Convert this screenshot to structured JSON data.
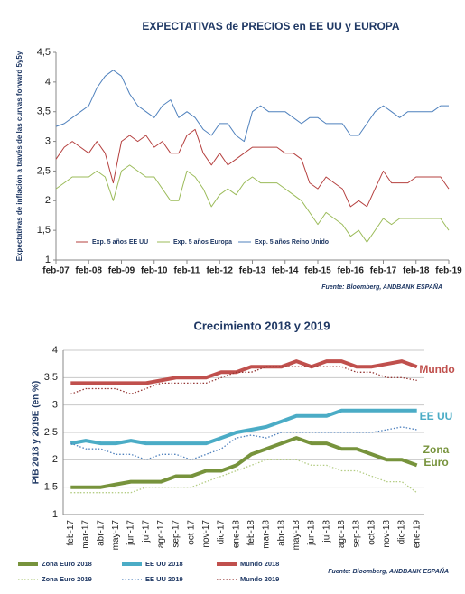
{
  "chart_data": [
    {
      "type": "line",
      "title": "EXPECTATIVAS de PRECIOS en EE UU y EUROPA",
      "ylabel": "Expectativas de inflación a través de las curvas forward 5y5y",
      "categories": [
        "feb-07",
        null,
        null,
        null,
        "feb-08",
        null,
        null,
        null,
        "feb-09",
        null,
        null,
        null,
        "feb-10",
        null,
        null,
        null,
        "feb-11",
        null,
        null,
        null,
        "feb-12",
        null,
        null,
        null,
        "feb-13",
        null,
        null,
        null,
        "feb-14",
        null,
        null,
        null,
        "feb-15",
        null,
        null,
        null,
        "feb-16",
        null,
        null,
        null,
        "feb-17",
        null,
        null,
        null,
        "feb-18",
        null,
        null,
        null,
        "feb-19"
      ],
      "ylim": [
        1,
        4.5
      ],
      "yticks": [
        1,
        {
          "value": 1.5,
          "label": "1,5"
        },
        2,
        {
          "value": 2.5,
          "label": "2,5"
        },
        3,
        {
          "value": 3.5,
          "label": "3,5"
        },
        4,
        {
          "value": 4.5,
          "label": "4,5"
        }
      ],
      "grid": false,
      "legend": "inside-bottom",
      "series": [
        {
          "name": "Exp. 5 años EE UU",
          "color": "#b5403f",
          "style": "thin",
          "values": [
            2.7,
            2.9,
            3.0,
            2.9,
            2.8,
            3.0,
            2.8,
            2.3,
            3.0,
            3.1,
            3.0,
            3.1,
            2.9,
            3.0,
            2.8,
            2.8,
            3.1,
            3.2,
            2.8,
            2.6,
            2.8,
            2.6,
            2.7,
            2.8,
            2.9,
            2.9,
            2.9,
            2.9,
            2.8,
            2.8,
            2.7,
            2.3,
            2.2,
            2.4,
            2.3,
            2.2,
            1.9,
            2.0,
            1.9,
            2.2,
            2.5,
            2.3,
            2.3,
            2.3,
            2.4,
            2.4,
            2.4,
            2.4,
            2.2
          ]
        },
        {
          "name": "Exp. 5 años Europa",
          "color": "#9bbb59",
          "style": "thin",
          "values": [
            2.2,
            2.3,
            2.4,
            2.4,
            2.4,
            2.5,
            2.4,
            2.0,
            2.5,
            2.6,
            2.5,
            2.4,
            2.4,
            2.2,
            2.0,
            2.0,
            2.5,
            2.4,
            2.2,
            1.9,
            2.1,
            2.2,
            2.1,
            2.3,
            2.4,
            2.3,
            2.3,
            2.3,
            2.2,
            2.1,
            2.0,
            1.8,
            1.6,
            1.8,
            1.7,
            1.6,
            1.4,
            1.5,
            1.3,
            1.5,
            1.7,
            1.6,
            1.7,
            1.7,
            1.7,
            1.7,
            1.7,
            1.7,
            1.5
          ]
        },
        {
          "name": "Exp. 5 años Reino Unido",
          "color": "#4f81bd",
          "style": "thin",
          "values": [
            3.25,
            3.3,
            3.4,
            3.5,
            3.6,
            3.9,
            4.1,
            4.2,
            4.1,
            3.8,
            3.6,
            3.5,
            3.4,
            3.6,
            3.7,
            3.4,
            3.5,
            3.4,
            3.2,
            3.1,
            3.3,
            3.3,
            3.1,
            3.0,
            3.5,
            3.6,
            3.5,
            3.5,
            3.5,
            3.4,
            3.3,
            3.4,
            3.4,
            3.3,
            3.3,
            3.3,
            3.1,
            3.1,
            3.3,
            3.5,
            3.6,
            3.5,
            3.4,
            3.5,
            3.5,
            3.5,
            3.5,
            3.6,
            3.6
          ]
        }
      ],
      "source": "Fuente: Bloomberg, ANDBANK ESPAÑA"
    },
    {
      "type": "line",
      "title": "Crecimiento 2018 y 2019",
      "ylabel": "PIB 2018 y 2019E (en %)",
      "categories": [
        "feb-17",
        "mar-17",
        "abr-17",
        "may-17",
        "jun-17",
        "jul-17",
        "ago-17",
        "sep-17",
        "oct-17",
        "nov-17",
        "dic-17",
        "ene-18",
        "feb-18",
        "mar-18",
        "abr-18",
        "may-18",
        "jun-18",
        "jul-18",
        "ago-18",
        "sep-18",
        "oct-18",
        "nov-18",
        "dic-18",
        "ene-19"
      ],
      "ylim": [
        1,
        4
      ],
      "yticks": [
        1,
        {
          "value": 1.5,
          "label": "1,5"
        },
        2,
        {
          "value": 2.5,
          "label": "2,5"
        },
        3,
        {
          "value": 3.5,
          "label": "3,5"
        },
        4
      ],
      "grid": true,
      "legend": "below",
      "series": [
        {
          "name": "Zona Euro 2018",
          "color": "#77933c",
          "style": "thick",
          "values": [
            1.5,
            1.5,
            1.5,
            1.55,
            1.6,
            1.6,
            1.6,
            1.7,
            1.7,
            1.8,
            1.8,
            1.9,
            2.1,
            2.2,
            2.3,
            2.4,
            2.3,
            2.3,
            2.2,
            2.2,
            2.1,
            2.0,
            2.0,
            1.9
          ]
        },
        {
          "name": "EE UU 2018",
          "color": "#4bacc6",
          "style": "thick",
          "values": [
            2.3,
            2.35,
            2.3,
            2.3,
            2.35,
            2.3,
            2.3,
            2.3,
            2.3,
            2.3,
            2.4,
            2.5,
            2.55,
            2.6,
            2.7,
            2.8,
            2.8,
            2.8,
            2.9,
            2.9,
            2.9,
            2.9,
            2.9,
            2.9
          ]
        },
        {
          "name": "Mundo 2018",
          "color": "#c0504d",
          "style": "thick",
          "values": [
            3.4,
            3.4,
            3.4,
            3.4,
            3.4,
            3.4,
            3.45,
            3.5,
            3.5,
            3.5,
            3.6,
            3.6,
            3.7,
            3.7,
            3.7,
            3.8,
            3.7,
            3.8,
            3.8,
            3.7,
            3.7,
            3.75,
            3.8,
            3.7
          ]
        },
        {
          "name": "Zona Euro 2019",
          "color": "#b3cc82",
          "style": "dotted",
          "values": [
            1.4,
            1.4,
            1.4,
            1.4,
            1.4,
            1.5,
            1.5,
            1.5,
            1.5,
            1.6,
            1.7,
            1.8,
            1.9,
            2.0,
            2.0,
            2.0,
            1.9,
            1.9,
            1.8,
            1.8,
            1.7,
            1.6,
            1.6,
            1.4
          ]
        },
        {
          "name": "EE UU 2019",
          "color": "#4f81bd",
          "style": "dotted",
          "values": [
            2.3,
            2.2,
            2.2,
            2.1,
            2.1,
            2.0,
            2.1,
            2.1,
            2.0,
            2.1,
            2.2,
            2.4,
            2.45,
            2.4,
            2.5,
            2.5,
            2.5,
            2.5,
            2.5,
            2.5,
            2.5,
            2.55,
            2.6,
            2.55
          ]
        },
        {
          "name": "Mundo 2019",
          "color": "#943634",
          "style": "dotted",
          "values": [
            3.2,
            3.3,
            3.3,
            3.3,
            3.2,
            3.3,
            3.4,
            3.4,
            3.4,
            3.4,
            3.5,
            3.6,
            3.6,
            3.7,
            3.7,
            3.7,
            3.7,
            3.7,
            3.7,
            3.6,
            3.6,
            3.5,
            3.5,
            3.45
          ]
        }
      ],
      "annotations": [
        {
          "text": "Mundo",
          "color": "#c0504d"
        },
        {
          "text": "EE UU",
          "color": "#4bacc6"
        },
        {
          "text": "Zona Euro",
          "color": "#77933c"
        }
      ],
      "source": "Fuente: Bloomberg, ANDBANK ESPAÑA"
    }
  ]
}
